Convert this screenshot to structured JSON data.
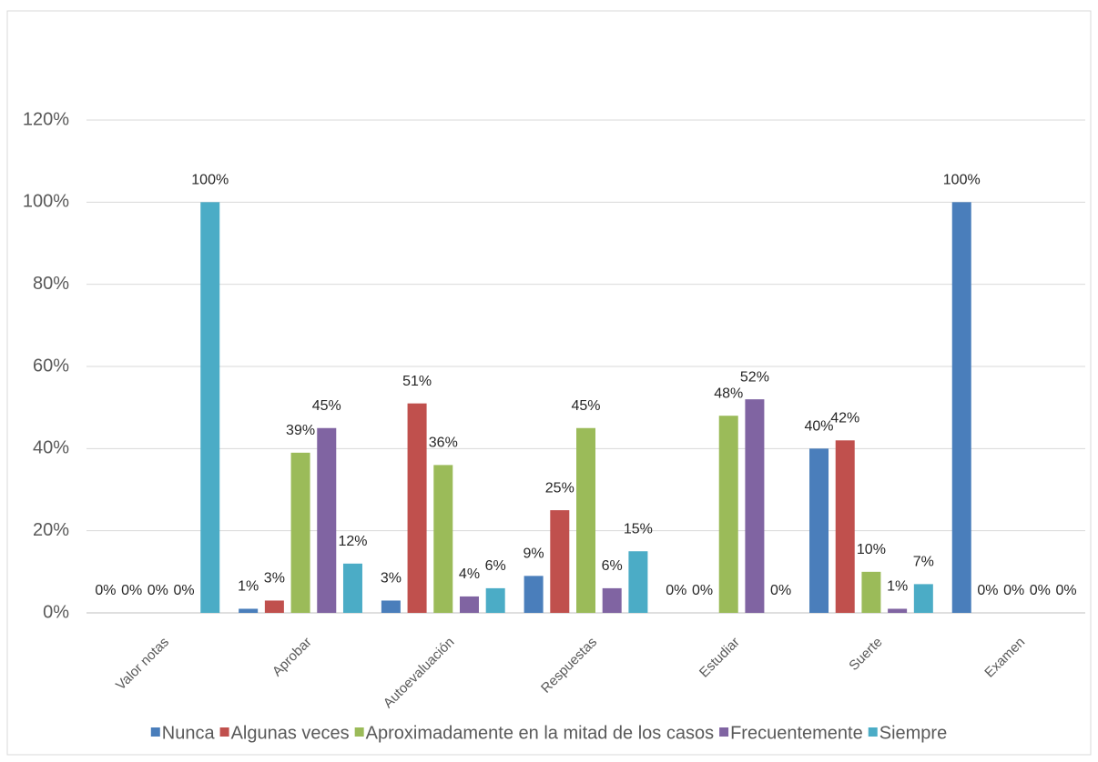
{
  "chart_data": {
    "type": "bar",
    "categories": [
      "Valor notas",
      "Aprobar",
      "Autoevaluación",
      "Respuestas",
      "Estudiar",
      "Suerte",
      "Examen"
    ],
    "series": [
      {
        "name": "Nunca",
        "color": "#4a7ebb",
        "values": [
          0,
          1,
          3,
          9,
          0,
          40,
          100
        ],
        "value_labels": [
          "0%",
          "1%",
          "3%",
          "9%",
          "0%",
          "40%",
          "100%"
        ]
      },
      {
        "name": "Algunas veces",
        "color": "#c0504d",
        "values": [
          0,
          3,
          51,
          25,
          0,
          42,
          0
        ],
        "value_labels": [
          "0%",
          "3%",
          "51%",
          "25%",
          "0%",
          "42%",
          "0%"
        ]
      },
      {
        "name": "Aproximadamente en la mitad de los casos",
        "color": "#9bbb59",
        "values": [
          0,
          39,
          36,
          45,
          48,
          10,
          0
        ],
        "value_labels": [
          "0%",
          "39%",
          "36%",
          "45%",
          "48%",
          "10%",
          "0%"
        ]
      },
      {
        "name": "Frecuentemente",
        "color": "#8064a2",
        "values": [
          0,
          45,
          4,
          6,
          52,
          1,
          0
        ],
        "value_labels": [
          "0%",
          "45%",
          "4%",
          "6%",
          "52%",
          "1%",
          "0%"
        ]
      },
      {
        "name": "Siempre",
        "color": "#4bacc6",
        "values": [
          100,
          12,
          6,
          15,
          0,
          7,
          0
        ],
        "value_labels": [
          "100%",
          "12%",
          "6%",
          "15%",
          "0%",
          "7%",
          "0%"
        ]
      }
    ],
    "ylim": [
      0,
      120
    ],
    "yticks": [
      {
        "value": 0,
        "label": "0%"
      },
      {
        "value": 20,
        "label": "20%"
      },
      {
        "value": 40,
        "label": "40%"
      },
      {
        "value": 60,
        "label": "60%"
      },
      {
        "value": 80,
        "label": "80%"
      },
      {
        "value": 100,
        "label": "100%"
      },
      {
        "value": 120,
        "label": "120%"
      }
    ],
    "grid": true,
    "legend": "bottom"
  }
}
